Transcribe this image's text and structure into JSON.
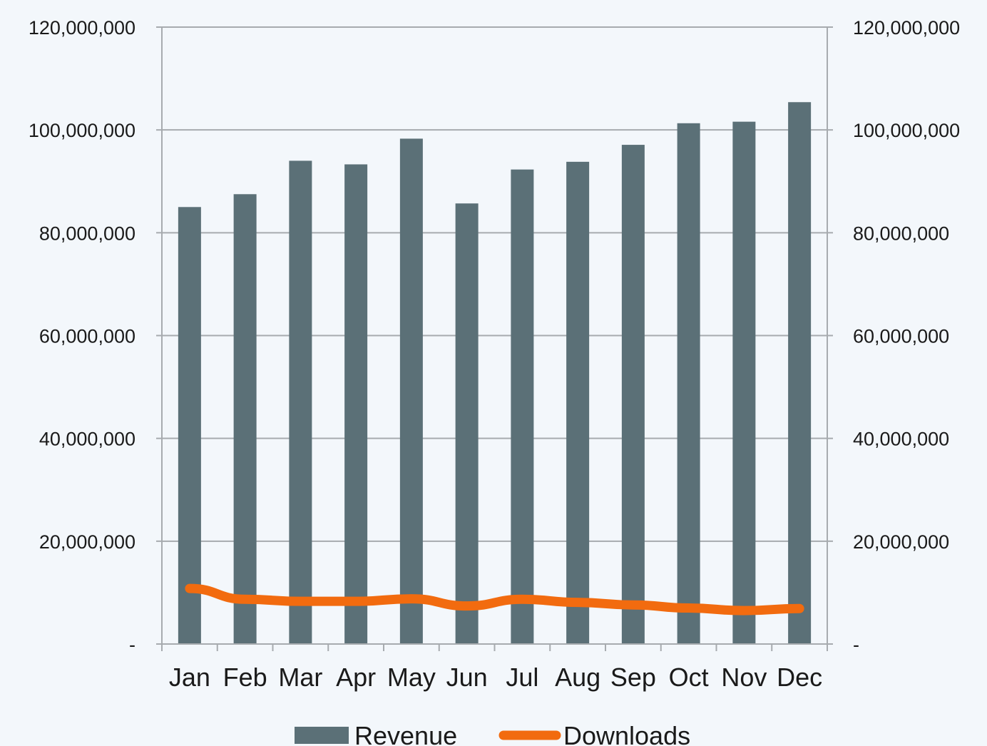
{
  "chart_data": {
    "type": "bar",
    "categories": [
      "Jan",
      "Feb",
      "Mar",
      "Apr",
      "May",
      "Jun",
      "Jul",
      "Aug",
      "Sep",
      "Oct",
      "Nov",
      "Dec"
    ],
    "series": [
      {
        "name": "Revenue",
        "type": "bar",
        "color": "#5b7077",
        "values": [
          85000000,
          87500000,
          94000000,
          93300000,
          98300000,
          85700000,
          92300000,
          93800000,
          97100000,
          101300000,
          101600000,
          105400000
        ]
      },
      {
        "name": "Downloads",
        "type": "line",
        "color": "#f26b0f",
        "values": [
          10800000,
          8700000,
          8300000,
          8300000,
          8800000,
          7400000,
          8700000,
          8100000,
          7600000,
          7000000,
          6500000,
          6900000
        ]
      }
    ],
    "y_ticks": [
      "-",
      "20,000,000",
      "40,000,000",
      "60,000,000",
      "80,000,000",
      "100,000,000",
      "120,000,000"
    ],
    "ylim": [
      0,
      120000000
    ],
    "secondary_ylim": [
      0,
      120000000
    ],
    "grid": true,
    "legend": "bottom"
  }
}
